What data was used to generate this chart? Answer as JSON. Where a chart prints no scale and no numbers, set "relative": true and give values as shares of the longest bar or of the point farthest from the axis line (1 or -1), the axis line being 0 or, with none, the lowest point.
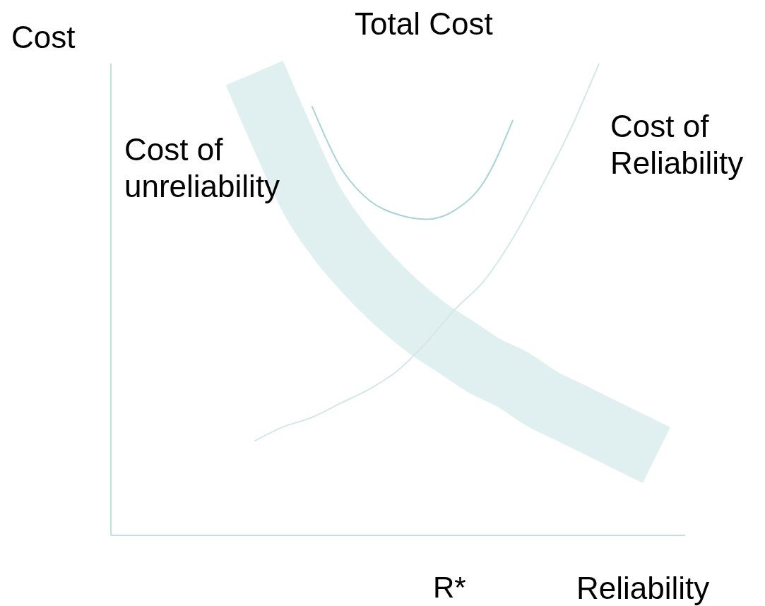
{
  "chart_data": {
    "type": "line",
    "relative": true,
    "xlabel": "Reliability",
    "ylabel": "Cost",
    "categories": [
      null,
      null,
      null,
      null,
      null,
      null,
      null,
      null,
      null,
      null,
      null,
      null,
      null,
      null,
      null,
      null,
      null,
      null,
      null,
      null,
      null
    ],
    "annotations": [
      "R*"
    ],
    "series": [
      {
        "name": "Total Cost",
        "color": "#a9d4d6",
        "values": [
          null,
          null,
          null,
          null,
          null,
          null,
          null,
          0.91,
          0.78,
          0.71,
          0.68,
          0.67,
          0.69,
          0.75,
          0.88,
          null,
          null,
          null,
          null,
          null,
          null
        ]
      },
      {
        "name": "Cost of Reliability",
        "color": "#d3e9e7",
        "values": [
          null,
          null,
          null,
          null,
          null,
          0.2,
          0.23,
          0.25,
          0.28,
          0.31,
          0.35,
          0.41,
          0.48,
          0.54,
          0.63,
          0.74,
          0.86,
          1,
          null,
          null,
          null
        ]
      },
      {
        "name": "Cost of unreliability",
        "color": "#e0efef",
        "values": [
          null,
          null,
          null,
          null,
          null,
          0.98,
          0.84,
          0.71,
          0.62,
          0.55,
          0.49,
          0.44,
          0.4,
          0.36,
          0.33,
          0.29,
          0.26,
          0.23,
          0.2,
          0.17,
          null
        ]
      }
    ],
    "grid": false,
    "legend": false
  }
}
